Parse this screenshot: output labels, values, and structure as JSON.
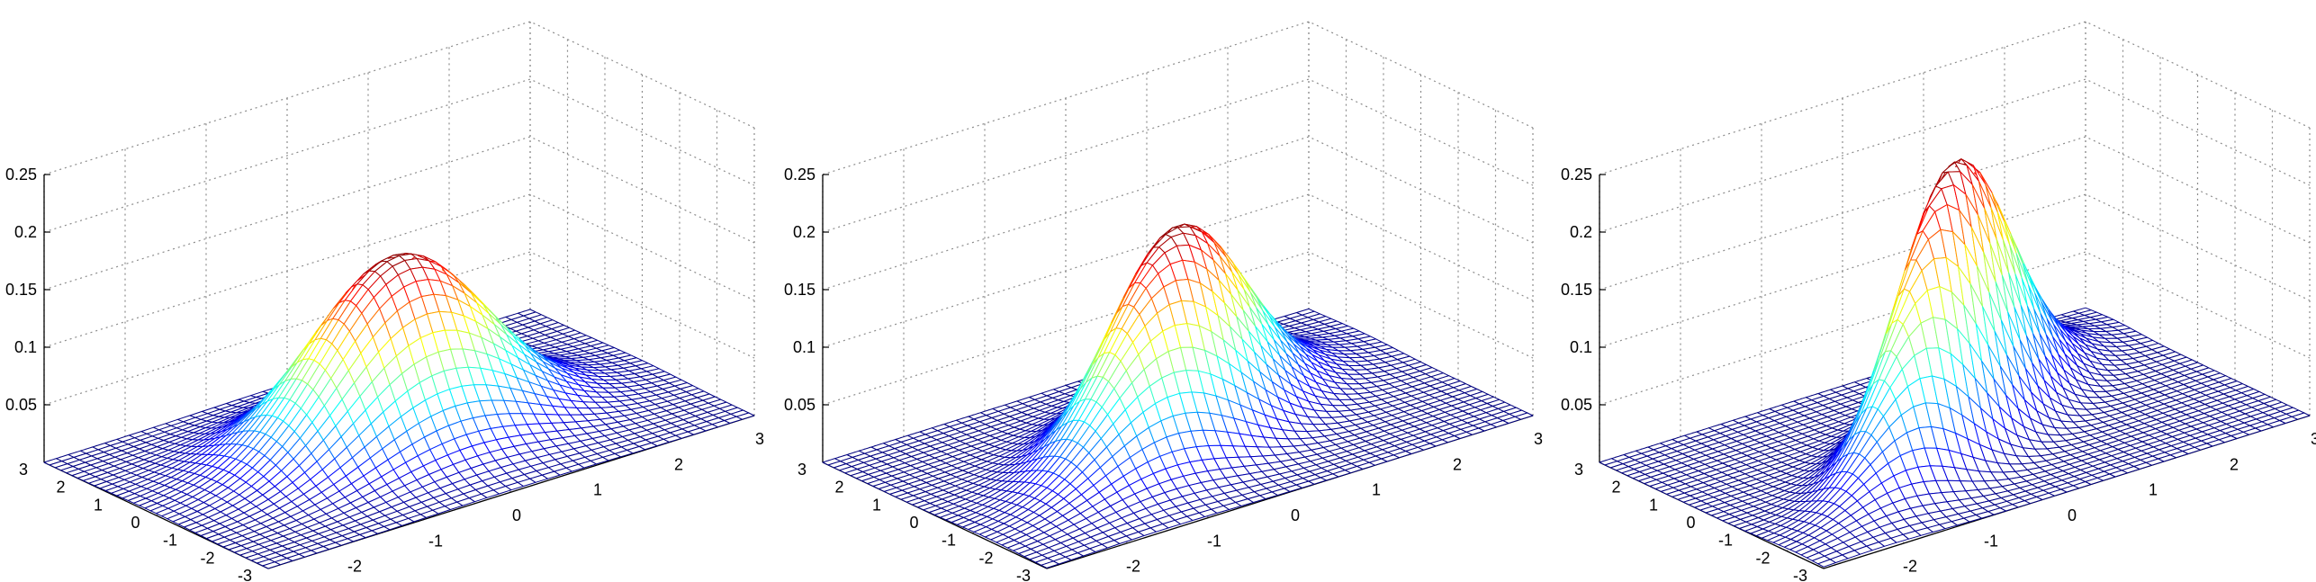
{
  "figure": {
    "background": "#ffffff",
    "mesh_colormap": "jet",
    "grid_style": "dotted",
    "grid_color": "#8c8c8c"
  },
  "chart_data": [
    {
      "type": "surface",
      "title": "",
      "xlabel": "",
      "ylabel": "",
      "zlabel": "",
      "xlim": [
        -3,
        3
      ],
      "ylim": [
        -3,
        3
      ],
      "zlim": [
        0,
        0.25
      ],
      "x_ticks": [
        "-3",
        "-2",
        "-1",
        "0",
        "1",
        "2",
        "3"
      ],
      "y_ticks": [
        "-3",
        "-2",
        "-1",
        "0",
        "1",
        "2",
        "3"
      ],
      "z_ticks": [
        "0.05",
        "0.1",
        "0.15",
        "0.2",
        "0.25"
      ],
      "grid": true,
      "mesh_points": 41,
      "distribution": {
        "mu_x": 0,
        "mu_y": 0,
        "sigma_x": 1,
        "sigma_y": 1,
        "rho": 0
      },
      "peak": 0.159
    },
    {
      "type": "surface",
      "title": "",
      "xlabel": "",
      "ylabel": "",
      "zlabel": "",
      "xlim": [
        -3,
        3
      ],
      "ylim": [
        -3,
        3
      ],
      "zlim": [
        0,
        0.25
      ],
      "x_ticks": [
        "-3",
        "-2",
        "-1",
        "0",
        "1",
        "2",
        "3"
      ],
      "y_ticks": [
        "-3",
        "-2",
        "-1",
        "0",
        "1",
        "2",
        "3"
      ],
      "z_ticks": [
        "0.05",
        "0.1",
        "0.15",
        "0.2",
        "0.25"
      ],
      "grid": true,
      "mesh_points": 41,
      "distribution": {
        "mu_x": 0,
        "mu_y": 0,
        "sigma_x": 1,
        "sigma_y": 1,
        "rho": 0.5
      },
      "peak": 0.184
    },
    {
      "type": "surface",
      "title": "",
      "xlabel": "",
      "ylabel": "",
      "zlabel": "",
      "xlim": [
        -3,
        3
      ],
      "ylim": [
        -3,
        3
      ],
      "zlim": [
        0,
        0.25
      ],
      "x_ticks": [
        "-3",
        "-2",
        "-1",
        "0",
        "1",
        "2",
        "3"
      ],
      "y_ticks": [
        "-3",
        "-2",
        "-1",
        "0",
        "1",
        "2",
        "3"
      ],
      "z_ticks": [
        "0.05",
        "0.1",
        "0.15",
        "0.2",
        "0.25"
      ],
      "grid": true,
      "mesh_points": 41,
      "distribution": {
        "mu_x": 0,
        "mu_y": 0,
        "sigma_x": 1,
        "sigma_y": 1,
        "rho": 0.75
      },
      "peak": 0.241
    }
  ]
}
